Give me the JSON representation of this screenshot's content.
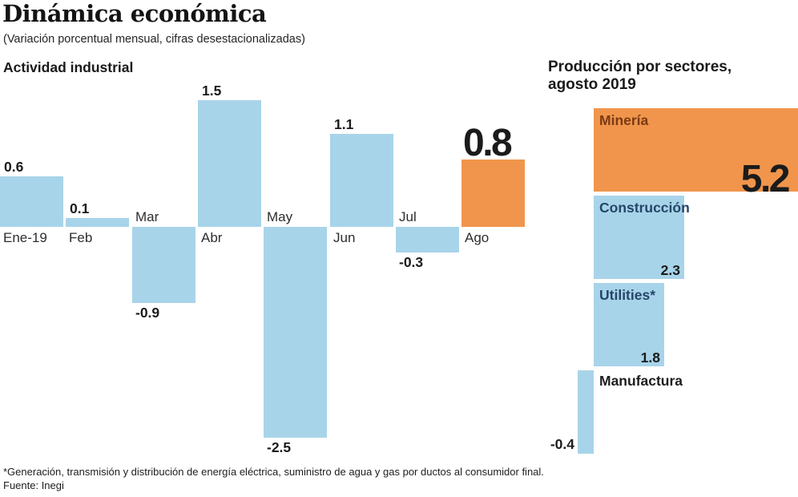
{
  "header": {
    "title": "Dinámica económica",
    "subtitle": "(Variación porcentual mensual, cifras desestacionalizadas)"
  },
  "charts": {
    "industrial": {
      "title": "Actividad industrial"
    },
    "sectors": {
      "title_line1": "Producción por sectores,",
      "title_line2": "agosto 2019"
    }
  },
  "footer": {
    "footnote": "*Generación, transmisión y distribución de energía eléctrica, suministro de agua y gas por ductos al consumidor final.",
    "source": "Fuente: Inegi"
  },
  "colors": {
    "bar_blue": "#A8D4EA",
    "bar_orange": "#F0954B",
    "value_text": "#1b1b1b",
    "mineria_label": "#7B3A15",
    "blue_sector_label": "#254669",
    "negative_sector_label": "#1d1d1d"
  },
  "chart_data": [
    {
      "type": "bar",
      "orientation": "vertical",
      "title": "Actividad industrial",
      "categories": [
        "Ene-19",
        "Feb",
        "Mar",
        "Abr",
        "May",
        "Jun",
        "Jul",
        "Ago"
      ],
      "values": [
        0.6,
        0.1,
        -0.9,
        1.5,
        -2.5,
        1.1,
        -0.3,
        0.8
      ],
      "value_labels": [
        "0.6",
        "0.1",
        "-0.9",
        "1.5",
        "-2.5",
        "1.1",
        "-0.3",
        "0.8"
      ],
      "highlight_index": 7,
      "ylim": [
        -2.8,
        1.8
      ],
      "grid": false,
      "legend": "none",
      "notes": "month labels sit on opposite side of baseline from the bar; August bar highlighted orange with oversized value label"
    },
    {
      "type": "bar",
      "orientation": "horizontal",
      "title": "Producción por sectores, agosto 2019",
      "categories": [
        "Minería",
        "Construcción",
        "Utilities*",
        "Manufactura"
      ],
      "values": [
        5.2,
        2.3,
        1.8,
        -0.4
      ],
      "value_labels": [
        "5.2",
        "2.3",
        "1.8",
        "-0.4"
      ],
      "highlight_index": 0,
      "xlim": [
        -0.5,
        5.2
      ],
      "grid": false,
      "legend": "none",
      "notes": "Minería bar highlighted orange with oversized value label; sector names printed at top-left inside bars"
    }
  ]
}
